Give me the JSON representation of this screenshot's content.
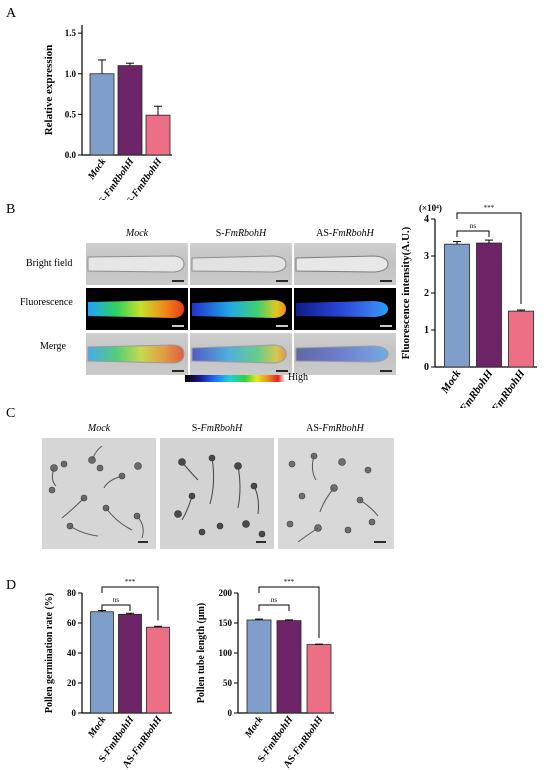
{
  "panels": {
    "a": "A",
    "b": "B",
    "c": "C",
    "d": "D"
  },
  "colors": {
    "mock": "#7f9fca",
    "s": "#6e2568",
    "as": "#ec6f86"
  },
  "panel_b": {
    "columns": [
      {
        "pre": "",
        "it": "Mock"
      },
      {
        "pre": "S-",
        "it": "FmRbohH"
      },
      {
        "pre": "AS-",
        "it": "FmRbohH"
      }
    ],
    "rows": [
      "Bright field",
      "Fluorescence",
      "Merge"
    ],
    "colorbar_high": "High"
  },
  "panel_c": {
    "columns": [
      {
        "pre": "",
        "it": "Mock"
      },
      {
        "pre": "S-",
        "it": "FmRbohH"
      },
      {
        "pre": "AS-",
        "it": "FmRbohH"
      }
    ]
  },
  "chart_data": [
    {
      "id": "A",
      "type": "bar",
      "categories": [
        {
          "pre": "",
          "it": "Mock"
        },
        {
          "pre": "S-",
          "it": "FmRbohH"
        },
        {
          "pre": "AS-",
          "it": "FmRbohH"
        }
      ],
      "values": [
        1.0,
        1.1,
        0.49
      ],
      "errors": [
        0.17,
        0.03,
        0.11
      ],
      "ylabel": "Relative expression",
      "ylim": [
        0,
        1.6
      ],
      "yticks": [
        0.0,
        0.5,
        1.0,
        1.5
      ],
      "tick_decimals": 1,
      "significance": []
    },
    {
      "id": "B",
      "type": "bar",
      "categories": [
        {
          "pre": "",
          "it": "Mock"
        },
        {
          "pre": "S-",
          "it": "FmRbohH"
        },
        {
          "pre": "AS-",
          "it": "FmRbohH"
        }
      ],
      "values": [
        3.32,
        3.35,
        1.51
      ],
      "errors": [
        0.07,
        0.08,
        0.03
      ],
      "ylabel": "Fluorescence intensity(A.U.)",
      "yunit": "(×10⁴)",
      "ylim": [
        0,
        4
      ],
      "yticks": [
        0,
        1,
        2,
        3,
        4
      ],
      "tick_decimals": 0,
      "significance": [
        {
          "from": 0,
          "to": 1,
          "label": "ns"
        },
        {
          "from": 0,
          "to": 2,
          "label": "***"
        }
      ]
    },
    {
      "id": "D1",
      "type": "bar",
      "categories": [
        {
          "pre": "",
          "it": "Mock"
        },
        {
          "pre": "S-",
          "it": "FmRbohH"
        },
        {
          "pre": "AS-",
          "it": "FmRbohH"
        }
      ],
      "values": [
        67.5,
        65.8,
        57.2
      ],
      "errors": [
        0.8,
        0.7,
        0.6
      ],
      "ylabel": "Pollen germination rate (%)",
      "ylim": [
        0,
        80
      ],
      "yticks": [
        0,
        20,
        40,
        60,
        80
      ],
      "tick_decimals": 0,
      "significance": [
        {
          "from": 0,
          "to": 1,
          "label": "ns"
        },
        {
          "from": 0,
          "to": 2,
          "label": "***"
        }
      ]
    },
    {
      "id": "D2",
      "type": "bar",
      "categories": [
        {
          "pre": "",
          "it": "Mock"
        },
        {
          "pre": "S-",
          "it": "FmRbohH"
        },
        {
          "pre": "AS-",
          "it": "FmRbohH"
        }
      ],
      "values": [
        155,
        154,
        114
      ],
      "errors": [
        1.5,
        1.2,
        0.8
      ],
      "ylabel": "Pollen tube length (μm)",
      "ylim": [
        0,
        200
      ],
      "yticks": [
        0,
        50,
        100,
        150,
        200
      ],
      "tick_decimals": 0,
      "significance": [
        {
          "from": 0,
          "to": 1,
          "label": "ns"
        },
        {
          "from": 0,
          "to": 2,
          "label": "***"
        }
      ]
    }
  ]
}
